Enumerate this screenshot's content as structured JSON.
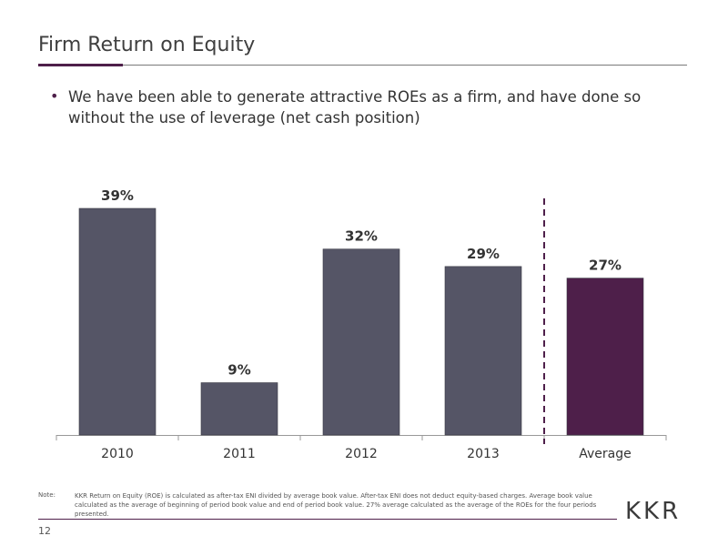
{
  "slide": {
    "title": "Firm Return on Equity",
    "bullet": "We have been able to generate attractive ROEs as a firm, and have done so without the use of leverage (net cash position)",
    "note_label": "Note:",
    "note_text": "KKR Return on Equity (ROE) is calculated as after-tax ENI divided by average book value.  After-tax ENI does not deduct equity-based charges. Average book value calculated as the average of beginning of period book value and end of period book value.  27% average calculated as the average of the ROEs for the four periods presented.",
    "page_number": "12",
    "logo_text": "KKR"
  },
  "chart_data": {
    "type": "bar",
    "title": "",
    "xlabel": "",
    "ylabel": "",
    "categories": [
      "2010",
      "2011",
      "2012",
      "2013",
      "Average"
    ],
    "values": [
      39,
      9,
      32,
      29,
      27
    ],
    "data_labels": [
      "39%",
      "9%",
      "32%",
      "29%",
      "27%"
    ],
    "ylim": [
      0,
      39
    ],
    "grid": false,
    "colors": {
      "bar": "#555566",
      "average_bar": "#4e1f4a",
      "divider": "#4e1f4a",
      "axis": "#999999"
    },
    "divider_before": "Average"
  }
}
